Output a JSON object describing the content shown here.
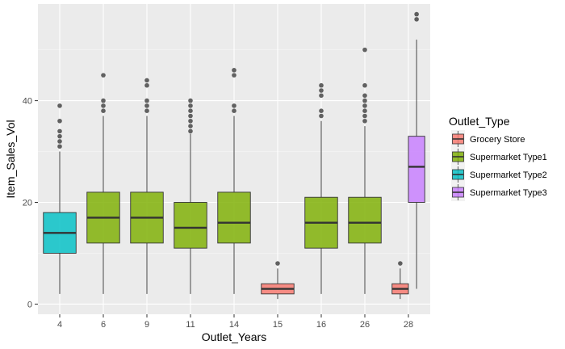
{
  "chart_data": {
    "type": "boxplot",
    "xlabel": "Outlet_Years",
    "ylabel": "Item_Sales_Vol",
    "ylim": [
      -2,
      59
    ],
    "yticks": [
      0,
      20,
      40
    ],
    "grid": true,
    "legend": {
      "title": "Outlet_Type",
      "position": "right",
      "entries": [
        {
          "label": "Grocery Store",
          "color": "#F8766D"
        },
        {
          "label": "Supermarket Type1",
          "color": "#7CAE00"
        },
        {
          "label": "Supermarket Type2",
          "color": "#00BFC4"
        },
        {
          "label": "Supermarket Type3",
          "color": "#C77CFF"
        }
      ]
    },
    "categories": [
      "4",
      "6",
      "9",
      "11",
      "14",
      "15",
      "16",
      "26",
      "28"
    ],
    "boxes": [
      {
        "category": "4",
        "type": "Supermarket Type2",
        "whisker_low": 2,
        "q1": 10,
        "median": 14,
        "q3": 18,
        "whisker_high": 30,
        "outliers": [
          31,
          32,
          33,
          34,
          36,
          39
        ]
      },
      {
        "category": "6",
        "type": "Supermarket Type1",
        "whisker_low": 2,
        "q1": 12,
        "median": 17,
        "q3": 22,
        "whisker_high": 37,
        "outliers": [
          38,
          39,
          40,
          45
        ]
      },
      {
        "category": "9",
        "type": "Supermarket Type1",
        "whisker_low": 2,
        "q1": 12,
        "median": 17,
        "q3": 22,
        "whisker_high": 37,
        "outliers": [
          38,
          39,
          40,
          43,
          44
        ]
      },
      {
        "category": "11",
        "type": "Supermarket Type1",
        "whisker_low": 2,
        "q1": 11,
        "median": 15,
        "q3": 20,
        "whisker_high": 33.5,
        "outliers": [
          34,
          35,
          36,
          37,
          38,
          39,
          40
        ]
      },
      {
        "category": "14",
        "type": "Supermarket Type1",
        "whisker_low": 2,
        "q1": 12,
        "median": 16,
        "q3": 22,
        "whisker_high": 37,
        "outliers": [
          38,
          39,
          45,
          46
        ]
      },
      {
        "category": "15",
        "type": "Grocery Store",
        "whisker_low": 1,
        "q1": 2,
        "median": 3,
        "q3": 4,
        "whisker_high": 7,
        "outliers": [
          8
        ]
      },
      {
        "category": "16",
        "type": "Supermarket Type1",
        "whisker_low": 2,
        "q1": 11,
        "median": 16,
        "q3": 21,
        "whisker_high": 36,
        "outliers": [
          37,
          38,
          41,
          42,
          43
        ]
      },
      {
        "category": "26",
        "type": "Supermarket Type1",
        "whisker_low": 2,
        "q1": 12,
        "median": 16,
        "q3": 21,
        "whisker_high": 35,
        "outliers": [
          36,
          37,
          38,
          39,
          40,
          41,
          43,
          50
        ]
      },
      {
        "category": "28",
        "type": "Grocery Store",
        "whisker_low": 1,
        "q1": 2,
        "median": 3,
        "q3": 4,
        "whisker_high": 7,
        "outliers": [
          8
        ]
      },
      {
        "category": "28",
        "type": "Supermarket Type3",
        "whisker_low": 3,
        "q1": 20,
        "median": 27,
        "q3": 33,
        "whisker_high": 52,
        "outliers": [
          56,
          57
        ]
      }
    ]
  }
}
